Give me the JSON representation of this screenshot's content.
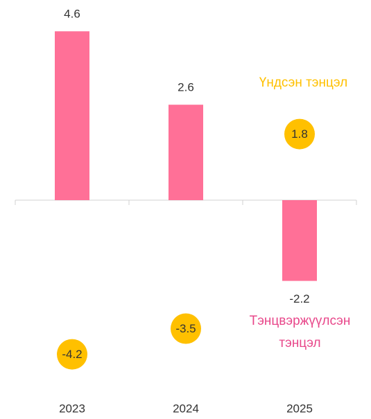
{
  "chart_data": {
    "type": "bar",
    "categories": [
      "2023",
      "2024",
      "2025"
    ],
    "series": [
      {
        "name": "Тэнцвэржүүлсэн тэнцэл",
        "color": "#ff7097",
        "values": [
          4.6,
          2.6,
          -2.2
        ]
      },
      {
        "name": "Үндсэн тэнцэл",
        "color": "#ffc000",
        "values": [
          -4.2,
          -3.5,
          1.8
        ],
        "marker": "circle"
      }
    ],
    "ylim": [
      -5,
      5
    ]
  }
}
